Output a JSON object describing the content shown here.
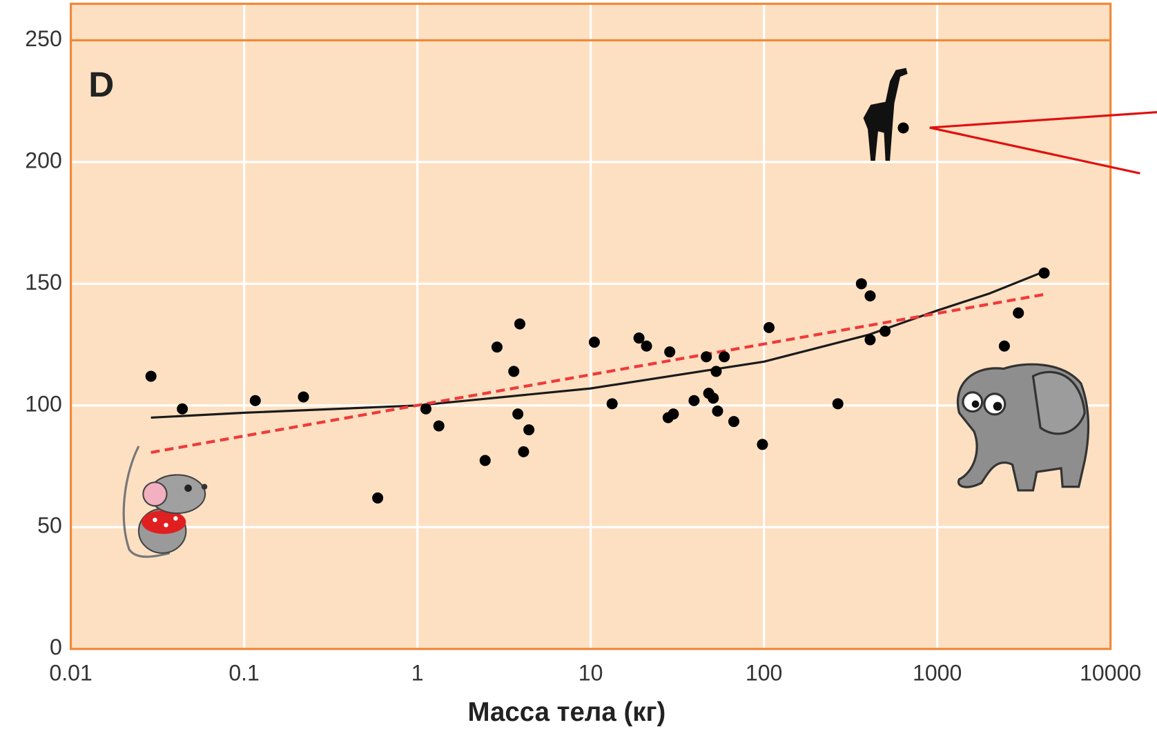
{
  "chart_data": {
    "type": "scatter",
    "panel_label": "D",
    "x_label": "Масса тела (кг)",
    "x_scale": "log",
    "xlim": [
      0.01,
      10000
    ],
    "xticks": [
      0.01,
      0.1,
      1,
      10,
      100,
      1000,
      10000
    ],
    "ylim": [
      0,
      265
    ],
    "yticks": [
      0,
      50,
      100,
      150,
      200,
      250
    ],
    "grid": true,
    "background": "#fde0c2",
    "border_color": "#f0893a",
    "ref_line": 250,
    "color": "#000000",
    "x": [
      0.029,
      0.044,
      0.116,
      0.22,
      0.59,
      1.12,
      1.33,
      2.46,
      2.88,
      3.6,
      3.9,
      3.8,
      4.1,
      4.4,
      10.5,
      13.3,
      19,
      21,
      28.6,
      28,
      30,
      39.5,
      46.5,
      48,
      51,
      53,
      59,
      54,
      67,
      98,
      107,
      267,
      365,
      410,
      410,
      500,
      637,
      2440,
      2940,
      4140
    ],
    "values": [
      112,
      98.6,
      102,
      103.5,
      62,
      98.6,
      91.6,
      77.4,
      124,
      114,
      133.5,
      96.5,
      81,
      90,
      126,
      100.7,
      127.7,
      124.4,
      122,
      95,
      96.5,
      102,
      120,
      105,
      103,
      114,
      120,
      97.7,
      93.4,
      84,
      132,
      100.7,
      150,
      145,
      127,
      130.5,
      214,
      124.4,
      138,
      154.4
    ],
    "fits": [
      {
        "color": "#1a1a1a",
        "dash": false,
        "x": [
          0.029,
          0.1,
          1,
          10,
          100,
          400,
          1000,
          2000,
          4140
        ],
        "values": [
          95,
          97,
          100,
          107,
          118,
          129,
          139,
          146,
          155
        ]
      },
      {
        "color": "#ee3b3b",
        "dash": true,
        "x": [
          0.029,
          4140
        ],
        "values": [
          80.7,
          145.6
        ]
      }
    ]
  }
}
